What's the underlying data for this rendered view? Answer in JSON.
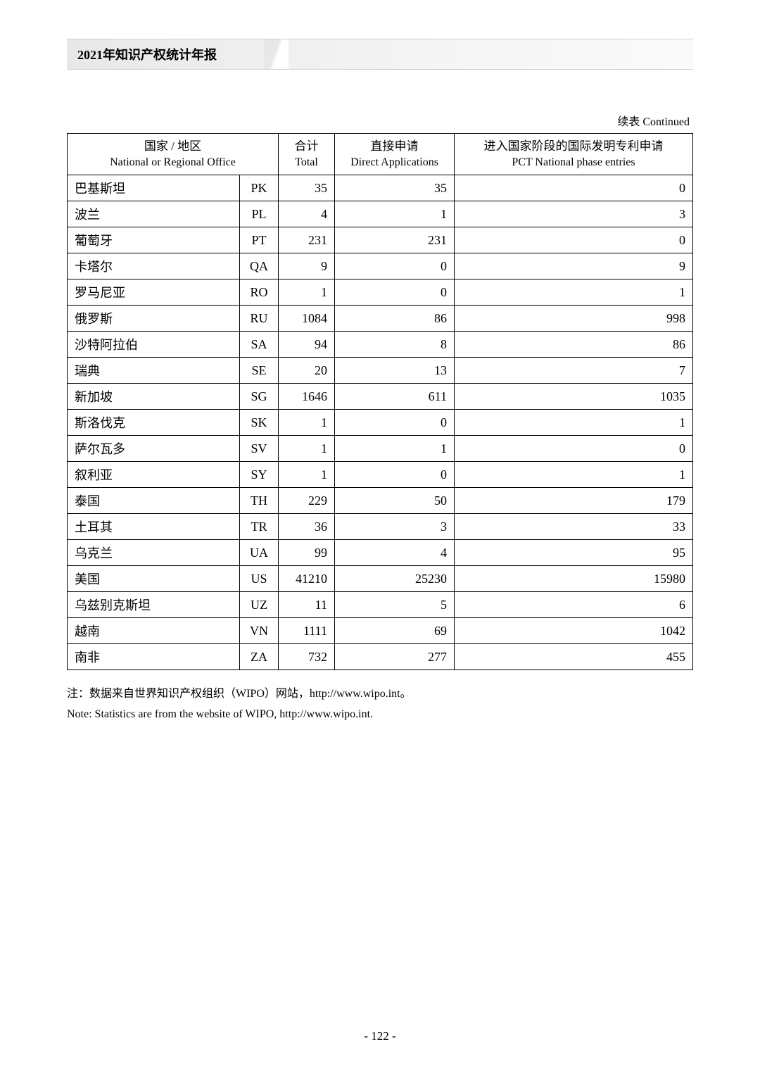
{
  "header": {
    "title": "2021年知识产权统计年报"
  },
  "continued_label": "续表 Continued",
  "table": {
    "columns": {
      "country": {
        "cn": "国家 / 地区",
        "en": "National or Regional Office"
      },
      "total": {
        "cn": "合计",
        "en": "Total"
      },
      "direct": {
        "cn": "直接申请",
        "en": "Direct Applications"
      },
      "pct": {
        "cn": "进入国家阶段的国际发明专利申请",
        "en": "PCT National phase entries"
      }
    },
    "rows": [
      {
        "name": "巴基斯坦",
        "code": "PK",
        "total": "35",
        "direct": "35",
        "pct": "0"
      },
      {
        "name": "波兰",
        "code": "PL",
        "total": "4",
        "direct": "1",
        "pct": "3"
      },
      {
        "name": "葡萄牙",
        "code": "PT",
        "total": "231",
        "direct": "231",
        "pct": "0"
      },
      {
        "name": "卡塔尔",
        "code": "QA",
        "total": "9",
        "direct": "0",
        "pct": "9"
      },
      {
        "name": "罗马尼亚",
        "code": "RO",
        "total": "1",
        "direct": "0",
        "pct": "1"
      },
      {
        "name": "俄罗斯",
        "code": "RU",
        "total": "1084",
        "direct": "86",
        "pct": "998"
      },
      {
        "name": "沙特阿拉伯",
        "code": "SA",
        "total": "94",
        "direct": "8",
        "pct": "86"
      },
      {
        "name": "瑞典",
        "code": "SE",
        "total": "20",
        "direct": "13",
        "pct": "7"
      },
      {
        "name": "新加坡",
        "code": "SG",
        "total": "1646",
        "direct": "611",
        "pct": "1035"
      },
      {
        "name": "斯洛伐克",
        "code": "SK",
        "total": "1",
        "direct": "0",
        "pct": "1"
      },
      {
        "name": "萨尔瓦多",
        "code": "SV",
        "total": "1",
        "direct": "1",
        "pct": "0"
      },
      {
        "name": "叙利亚",
        "code": "SY",
        "total": "1",
        "direct": "0",
        "pct": "1"
      },
      {
        "name": "泰国",
        "code": "TH",
        "total": "229",
        "direct": "50",
        "pct": "179"
      },
      {
        "name": "土耳其",
        "code": "TR",
        "total": "36",
        "direct": "3",
        "pct": "33"
      },
      {
        "name": "乌克兰",
        "code": "UA",
        "total": "99",
        "direct": "4",
        "pct": "95"
      },
      {
        "name": "美国",
        "code": "US",
        "total": "41210",
        "direct": "25230",
        "pct": "15980"
      },
      {
        "name": "乌兹别克斯坦",
        "code": "UZ",
        "total": "11",
        "direct": "5",
        "pct": "6"
      },
      {
        "name": "越南",
        "code": "VN",
        "total": "1111",
        "direct": "69",
        "pct": "1042"
      },
      {
        "name": "南非",
        "code": "ZA",
        "total": "732",
        "direct": "277",
        "pct": "455"
      }
    ]
  },
  "footnote": {
    "cn": "注：数据来自世界知识产权组织（WIPO）网站，http://www.wipo.int。",
    "en": "Note: Statistics are from the website of WIPO, http://www.wipo.int."
  },
  "page_number": "- 122 -"
}
